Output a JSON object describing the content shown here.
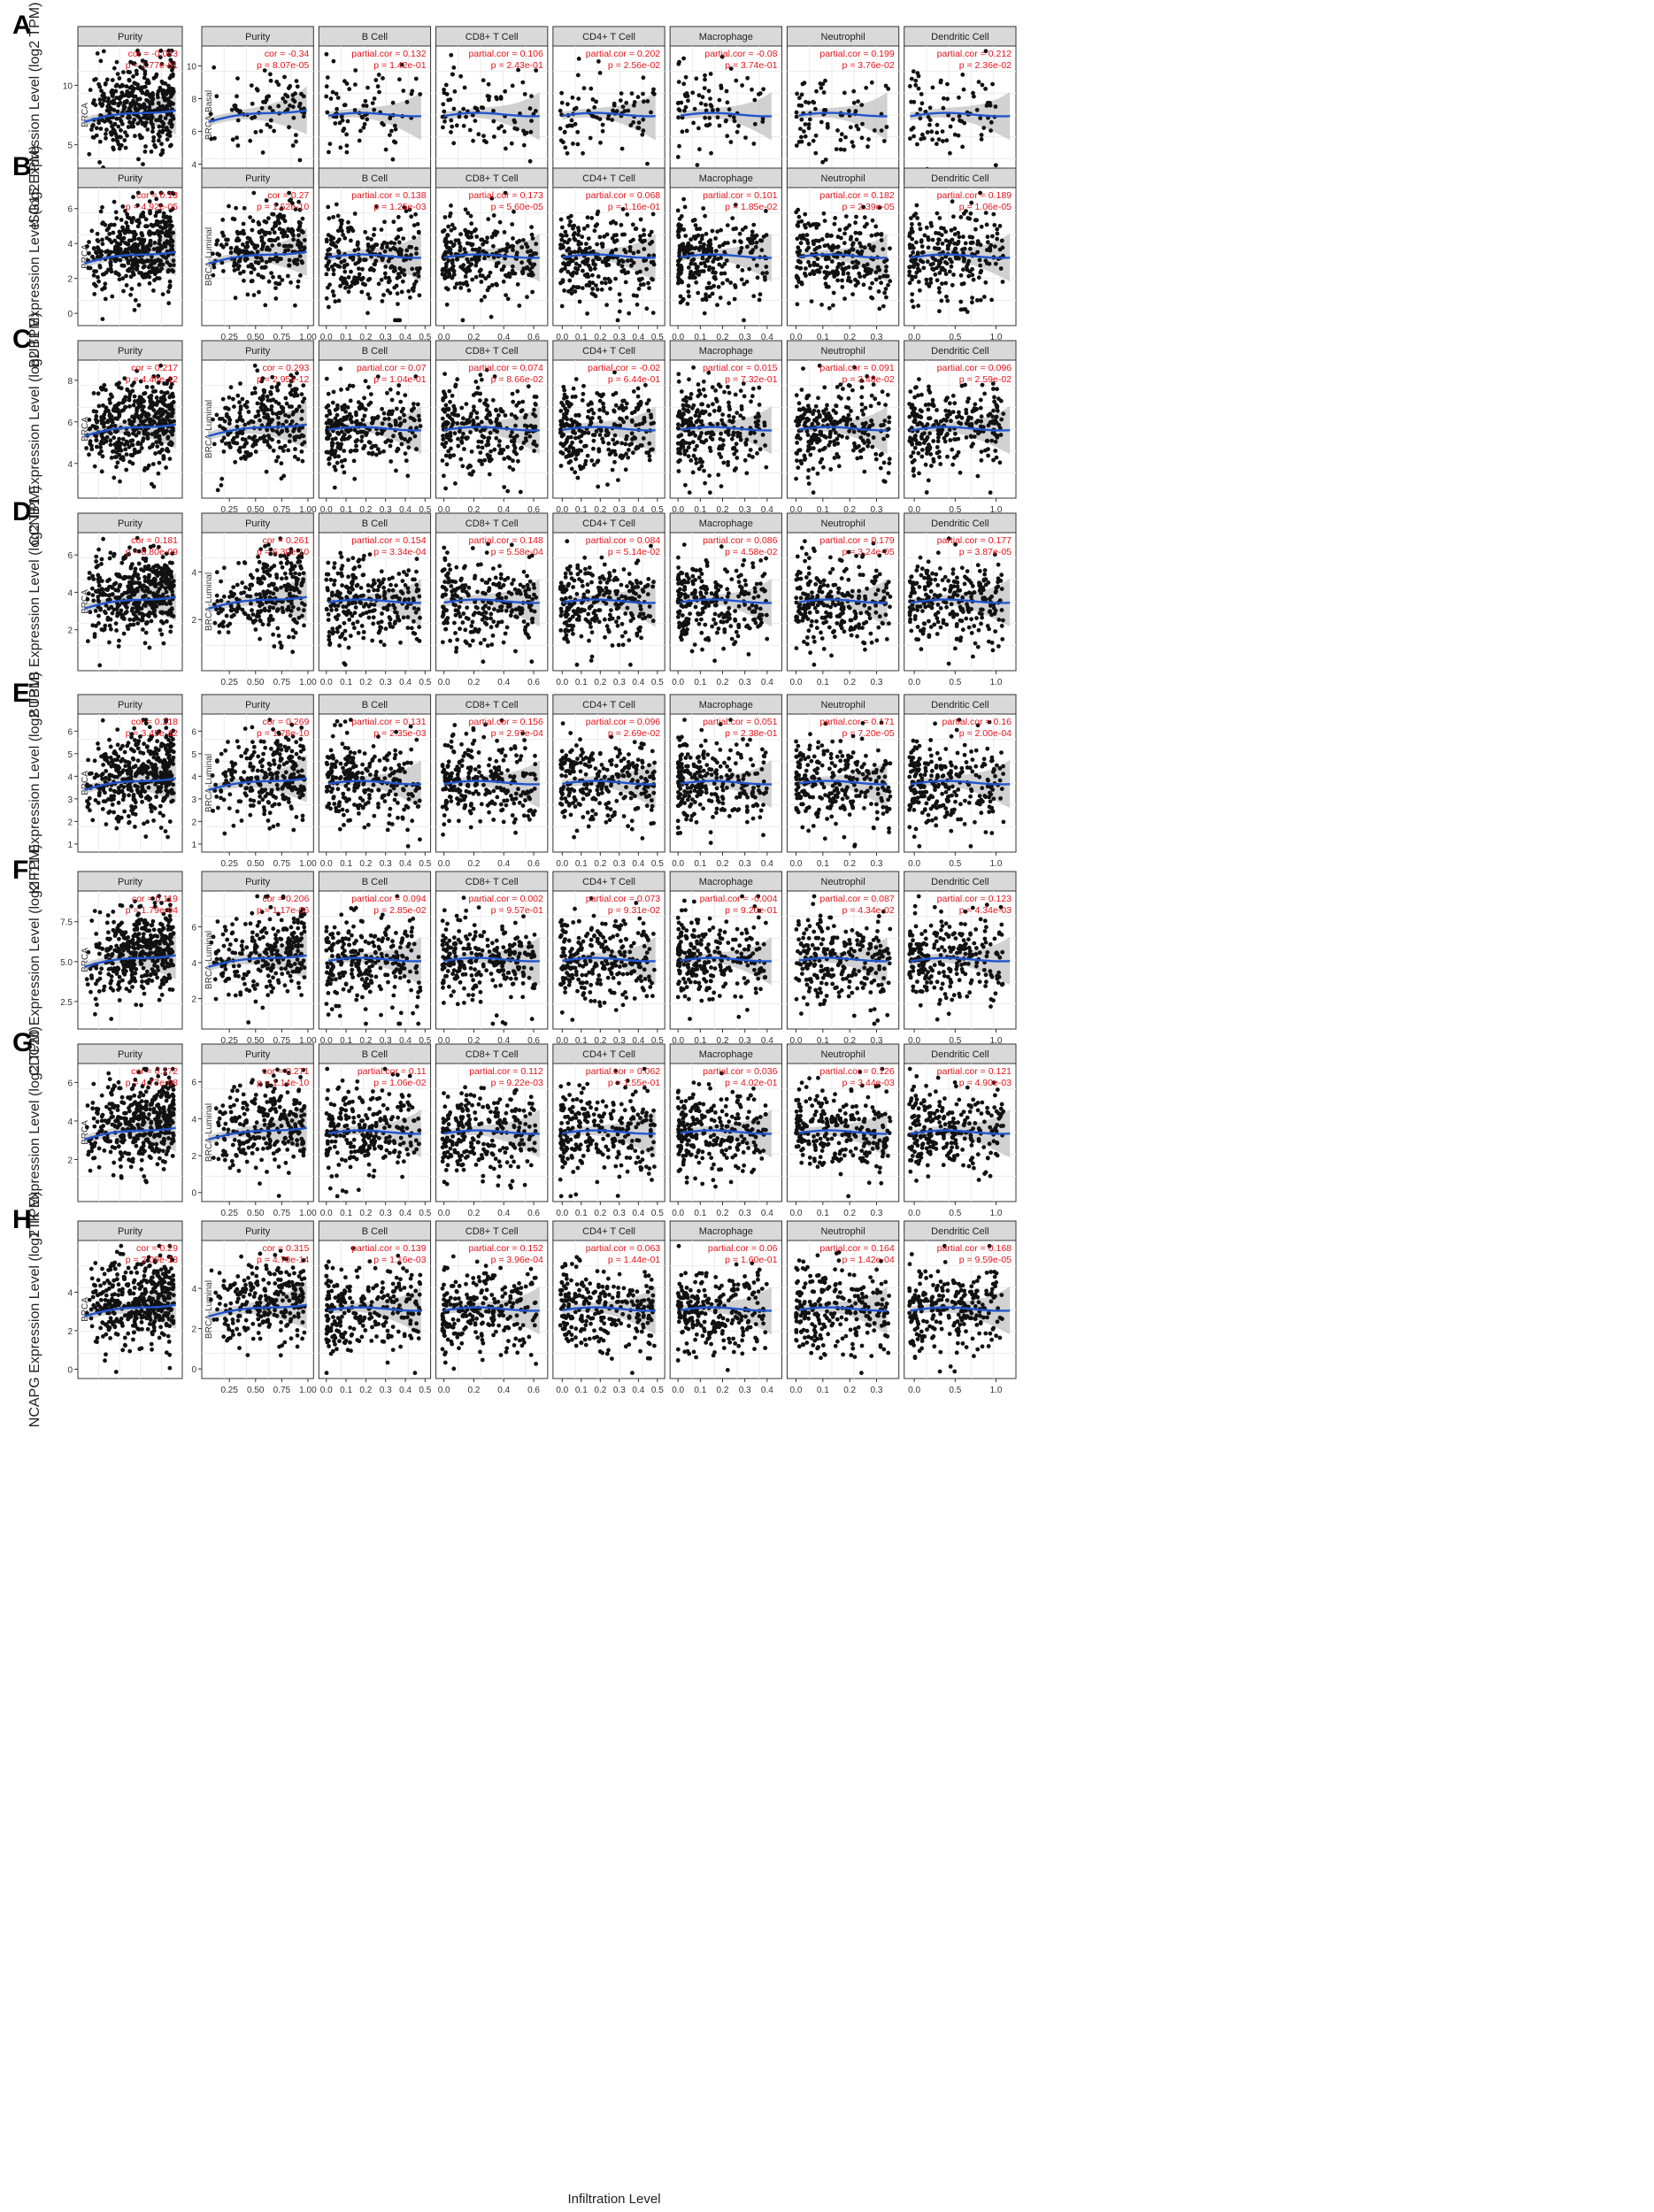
{
  "colors": {
    "points": "#111111",
    "fit_line": "#2255cc",
    "ci_band": "#bdbdbd",
    "stats_text": "#e4141b",
    "strip_fill": "#d9d9d9",
    "strip_border": "#333333",
    "grid": "#ebebeb"
  },
  "shared": {
    "xlabel": "Infiltration Level",
    "panel_titles": [
      "Purity",
      "B Cell",
      "CD8+ T Cell",
      "CD4+ T Cell",
      "Macrophage",
      "Neutrophil",
      "Dendritic Cell"
    ],
    "xticks": [
      [
        0.25,
        0.5,
        0.75,
        1.0
      ],
      [
        0.0,
        0.1,
        0.2,
        0.3,
        0.4,
        0.5
      ],
      [
        0.0,
        0.2,
        0.4,
        0.6
      ],
      [
        0.0,
        0.1,
        0.2,
        0.3,
        0.4,
        0.5
      ],
      [
        0.0,
        0.1,
        0.2,
        0.3,
        0.4
      ],
      [
        0.0,
        0.1,
        0.2,
        0.3
      ],
      [
        0.0,
        0.5,
        1.0
      ]
    ],
    "xlims": [
      [
        0.02,
        1.02
      ],
      [
        -0.02,
        0.51
      ],
      [
        -0.03,
        0.67
      ],
      [
        -0.03,
        0.52
      ],
      [
        -0.02,
        0.45
      ],
      [
        -0.02,
        0.37
      ],
      [
        -0.08,
        1.2
      ]
    ]
  },
  "chart_data": [
    {
      "type": "scatter",
      "row_label": "A",
      "ylabel": "ISG15 Expression Level (log2 TPM)",
      "cohort_label": "BRCA",
      "subtype_label": "BRCA-Basal",
      "overall": {
        "title": "Purity",
        "cor": "cor = -0.043",
        "p": "p = 1.77e-01",
        "yticks": [
          5,
          10
        ],
        "ylim": [
          2,
          13
        ]
      },
      "panels": [
        {
          "title": "Purity",
          "cor": "cor = -0.34",
          "p": "p = 8.07e-05"
        },
        {
          "title": "B Cell",
          "cor": "partial.cor = 0.132",
          "p": "p = 1.42e-01"
        },
        {
          "title": "CD8+ T Cell",
          "cor": "partial.cor = 0.106",
          "p": "p = 2.43e-01"
        },
        {
          "title": "CD4+ T Cell",
          "cor": "partial.cor = 0.202",
          "p": "p = 2.56e-02"
        },
        {
          "title": "Macrophage",
          "cor": "partial.cor = -0.08",
          "p": "p = 3.74e-01"
        },
        {
          "title": "Neutrophil",
          "cor": "partial.cor = 0.199",
          "p": "p = 3.76e-02"
        },
        {
          "title": "Dendritic Cell",
          "cor": "partial.cor = 0.212",
          "p": "p = 2.36e-02"
        }
      ],
      "sub_yticks": [
        4,
        6,
        8,
        10
      ],
      "sub_ylim": [
        3,
        11
      ],
      "show_xticks": false
    },
    {
      "type": "scatter",
      "row_label": "B",
      "ylabel": "BUB1 Expression Level (log2 TPM)",
      "cohort_label": "BRCA",
      "subtype_label": "BRCA-Luminal",
      "overall": {
        "title": "Purity",
        "cor": "cor = 0.13",
        "p": "p = 4.92e-05",
        "yticks": [
          0,
          2,
          4,
          6
        ],
        "ylim": [
          -0.5,
          7
        ]
      },
      "panels": [
        {
          "title": "Purity",
          "cor": "cor = 0.27",
          "p": "p = 1.52e-10"
        },
        {
          "title": "B Cell",
          "cor": "partial.cor = 0.138",
          "p": "p = 1.25e-03"
        },
        {
          "title": "CD8+ T Cell",
          "cor": "partial.cor = 0.173",
          "p": "p = 5.60e-05"
        },
        {
          "title": "CD4+ T Cell",
          "cor": "partial.cor = 0.068",
          "p": "p = 1.16e-01"
        },
        {
          "title": "Macrophage",
          "cor": "partial.cor = 0.101",
          "p": "p = 1.85e-02"
        },
        {
          "title": "Neutrophil",
          "cor": "partial.cor = 0.182",
          "p": "p = 2.39e-05"
        },
        {
          "title": "Dendritic Cell",
          "cor": "partial.cor = 0.189",
          "p": "p = 1.06e-05"
        }
      ],
      "sub_yticks": [],
      "sub_ylim": [
        0,
        7
      ],
      "show_xticks": true
    },
    {
      "type": "scatter",
      "row_label": "C",
      "ylabel": "CCNB1 Expression Level (log2 TPM)",
      "cohort_label": "BRCA",
      "subtype_label": "BRCA-Luminal",
      "overall": {
        "title": "Purity",
        "cor": "cor = 0.217",
        "p": "p = 4.46e-12",
        "yticks": [
          4,
          6,
          8
        ],
        "ylim": [
          2.5,
          8.8
        ]
      },
      "panels": [
        {
          "title": "Purity",
          "cor": "cor = 0.293",
          "p": "p = 2.95e-12"
        },
        {
          "title": "B Cell",
          "cor": "partial.cor = 0.07",
          "p": "p = 1.04e-01"
        },
        {
          "title": "CD8+ T Cell",
          "cor": "partial.cor = 0.074",
          "p": "p = 8.66e-02"
        },
        {
          "title": "CD4+ T Cell",
          "cor": "partial.cor = -0.02",
          "p": "p = 6.44e-01"
        },
        {
          "title": "Macrophage",
          "cor": "partial.cor = 0.015",
          "p": "p = 7.32e-01"
        },
        {
          "title": "Neutrophil",
          "cor": "partial.cor = 0.091",
          "p": "p = 3.48e-02"
        },
        {
          "title": "Dendritic Cell",
          "cor": "partial.cor = 0.096",
          "p": "p = 2.59e-02"
        }
      ],
      "sub_yticks": [],
      "sub_ylim": [
        2.5,
        8.8
      ],
      "show_xticks": true
    },
    {
      "type": "scatter",
      "row_label": "D",
      "ylabel": "BUB1B Expression Level (log2 TPM)",
      "cohort_label": "BRCA",
      "subtype_label": "BRCA-Luminal",
      "overall": {
        "title": "Purity",
        "cor": "cor = 0.181",
        "p": "p = 8.80e-09",
        "yticks": [
          2,
          4,
          6
        ],
        "ylim": [
          0,
          7
        ]
      },
      "panels": [
        {
          "title": "Purity",
          "cor": "cor = 0.261",
          "p": "p = 6.30e-10"
        },
        {
          "title": "B Cell",
          "cor": "partial.cor = 0.154",
          "p": "p = 3.34e-04"
        },
        {
          "title": "CD8+ T Cell",
          "cor": "partial.cor = 0.148",
          "p": "p = 5.58e-04"
        },
        {
          "title": "CD4+ T Cell",
          "cor": "partial.cor = 0.084",
          "p": "p = 5.14e-02"
        },
        {
          "title": "Macrophage",
          "cor": "partial.cor = 0.086",
          "p": "p = 4.58e-02"
        },
        {
          "title": "Neutrophil",
          "cor": "partial.cor = 0.179",
          "p": "p = 3.24e-05"
        },
        {
          "title": "Dendritic Cell",
          "cor": "partial.cor = 0.177",
          "p": "p = 3.87e-05"
        }
      ],
      "sub_yticks": [
        2,
        4
      ],
      "sub_ylim": [
        0,
        5.5
      ],
      "show_xticks": true
    },
    {
      "type": "scatter",
      "row_label": "E",
      "ylabel": "KIF11 Expression Level (log2 TPM)",
      "cohort_label": "BRCA",
      "subtype_label": "BRCA-Luminal",
      "overall": {
        "title": "Purity",
        "cor": "cor = 0.218",
        "p": "p = 3.45e-12",
        "yticks": [
          1,
          2,
          3,
          4,
          5,
          6
        ],
        "ylim": [
          0.8,
          6.6
        ]
      },
      "panels": [
        {
          "title": "Purity",
          "cor": "cor = 0.269",
          "p": "p = 1.78e-10"
        },
        {
          "title": "B Cell",
          "cor": "partial.cor = 0.131",
          "p": "p = 2.35e-03"
        },
        {
          "title": "CD8+ T Cell",
          "cor": "partial.cor = 0.156",
          "p": "p = 2.97e-04"
        },
        {
          "title": "CD4+ T Cell",
          "cor": "partial.cor = 0.096",
          "p": "p = 2.69e-02"
        },
        {
          "title": "Macrophage",
          "cor": "partial.cor = 0.051",
          "p": "p = 2.38e-01"
        },
        {
          "title": "Neutrophil",
          "cor": "partial.cor = 0.171",
          "p": "p = 7.20e-05"
        },
        {
          "title": "Dendritic Cell",
          "cor": "partial.cor = 0.16",
          "p": "p = 2.00e-04"
        }
      ],
      "sub_yticks": [
        1,
        2,
        3,
        4,
        5,
        6
      ],
      "sub_ylim": [
        0.8,
        6.6
      ],
      "show_xticks": true
    },
    {
      "type": "scatter",
      "row_label": "F",
      "ylabel": "CDC20 Expression Level (log2 TPM)",
      "cohort_label": "BRCA",
      "subtype_label": "BRCA-Luminal",
      "overall": {
        "title": "Purity",
        "cor": "cor = 0.119",
        "p": "p = 1.79e-04",
        "yticks": [
          2.5,
          5.0,
          7.5
        ],
        "ylim": [
          1,
          9.2
        ]
      },
      "panels": [
        {
          "title": "Purity",
          "cor": "cor = 0.206",
          "p": "p = 1.17e-06"
        },
        {
          "title": "B Cell",
          "cor": "partial.cor = 0.094",
          "p": "p = 2.85e-02"
        },
        {
          "title": "CD8+ T Cell",
          "cor": "partial.cor = 0.002",
          "p": "p = 9.57e-01"
        },
        {
          "title": "CD4+ T Cell",
          "cor": "partial.cor = 0.073",
          "p": "p = 9.31e-02"
        },
        {
          "title": "Macrophage",
          "cor": "partial.cor = -0.004",
          "p": "p = 9.20e-01"
        },
        {
          "title": "Neutrophil",
          "cor": "partial.cor = 0.087",
          "p": "p = 4.34e-02"
        },
        {
          "title": "Dendritic Cell",
          "cor": "partial.cor = 0.123",
          "p": "p = 4.34e-03"
        }
      ],
      "sub_yticks": [
        2,
        4,
        6
      ],
      "sub_ylim": [
        0.5,
        7.8
      ],
      "show_xticks": true
    },
    {
      "type": "scatter",
      "row_label": "G",
      "ylabel": "TTK Expression Level (log2 TPM)",
      "cohort_label": "BRCA",
      "subtype_label": "BRCA-Luminal",
      "overall": {
        "title": "Purity",
        "cor": "cor = 0.172",
        "p": "p = 4.77e-08",
        "yticks": [
          2,
          4,
          6
        ],
        "ylim": [
          0,
          6.8
        ]
      },
      "panels": [
        {
          "title": "Purity",
          "cor": "cor = 0.271",
          "p": "p = 1.14e-10"
        },
        {
          "title": "B Cell",
          "cor": "partial.cor = 0.11",
          "p": "p = 1.06e-02"
        },
        {
          "title": "CD8+ T Cell",
          "cor": "partial.cor = 0.112",
          "p": "p = 9.22e-03"
        },
        {
          "title": "CD4+ T Cell",
          "cor": "partial.cor = 0.062",
          "p": "p = 1.55e-01"
        },
        {
          "title": "Macrophage",
          "cor": "partial.cor = 0.036",
          "p": "p = 4.02e-01"
        },
        {
          "title": "Neutrophil",
          "cor": "partial.cor = 0.126",
          "p": "p = 3.44e-03"
        },
        {
          "title": "Dendritic Cell",
          "cor": "partial.cor = 0.121",
          "p": "p = 4.90e-03"
        }
      ],
      "sub_yticks": [
        0,
        2,
        4,
        6
      ],
      "sub_ylim": [
        -0.3,
        6.8
      ],
      "show_xticks": true
    },
    {
      "type": "scatter",
      "row_label": "H",
      "ylabel": "NCAPG Expression Level (log2 TPM)",
      "cohort_label": "BRCA",
      "subtype_label": "BRCA-Luminal",
      "overall": {
        "title": "Purity",
        "cor": "cor = 0.29",
        "p": "p = 2.09e-13",
        "yticks": [
          0,
          2,
          4
        ],
        "ylim": [
          -0.3,
          6.5
        ]
      },
      "panels": [
        {
          "title": "Purity",
          "cor": "cor = 0.315",
          "p": "p = 4.70e-14"
        },
        {
          "title": "B Cell",
          "cor": "partial.cor = 0.139",
          "p": "p = 1.16e-03"
        },
        {
          "title": "CD8+ T Cell",
          "cor": "partial.cor = 0.152",
          "p": "p = 3.96e-04"
        },
        {
          "title": "CD4+ T Cell",
          "cor": "partial.cor = 0.063",
          "p": "p = 1.44e-01"
        },
        {
          "title": "Macrophage",
          "cor": "partial.cor = 0.06",
          "p": "p = 1.60e-01"
        },
        {
          "title": "Neutrophil",
          "cor": "partial.cor = 0.164",
          "p": "p = 1.42e-04"
        },
        {
          "title": "Dendritic Cell",
          "cor": "partial.cor = 0.168",
          "p": "p = 9.59e-05"
        }
      ],
      "sub_yticks": [
        0,
        2,
        4
      ],
      "sub_ylim": [
        -0.3,
        6.2
      ],
      "show_xticks": true
    }
  ]
}
